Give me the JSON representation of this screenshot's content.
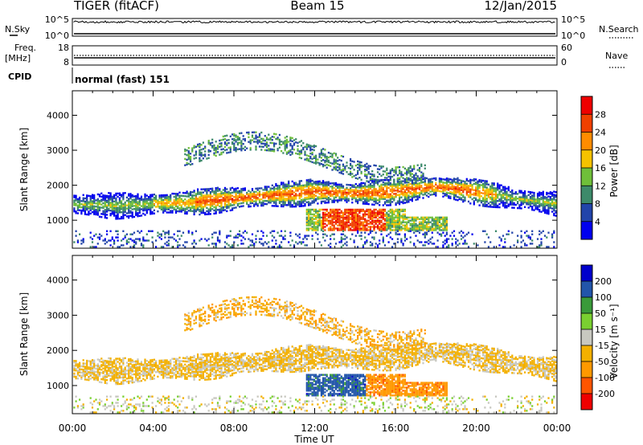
{
  "header": {
    "station": "TIGER (fitACF)",
    "beam": "Beam 15",
    "date": "12/Jan/2015"
  },
  "strips": {
    "nsky_label": "N.Sky",
    "nsky_ticks": [
      "10^5",
      "10^0"
    ],
    "nsearch_label": "N.Search",
    "nsearch_ticks": [
      "10^5",
      "10^0"
    ],
    "freq_label": "Freq.",
    "freq_unit": "[MHz]",
    "freq_ticks": [
      "18",
      "8"
    ],
    "nave_label": "Nave",
    "nave_ticks": [
      "60",
      "0"
    ],
    "cpid_label": "CPID",
    "cpid_value": "normal (fast) 151"
  },
  "colors": {
    "power_scale": [
      "#0000ee",
      "#2244aa",
      "#3d8a6a",
      "#6fbf3a",
      "#f5c200",
      "#ff8c00",
      "#f04000",
      "#ee0000"
    ],
    "velocity_scale": [
      "#ee0000",
      "#ff5500",
      "#ff9900",
      "#f3b000",
      "#c8c8c0",
      "#7ad030",
      "#3a9a3a",
      "#2255aa",
      "#0000cc"
    ]
  },
  "chart_data": [
    {
      "type": "heatmap",
      "name": "power-panel",
      "xlabel": "",
      "ylabel": "Slant Range [km]",
      "x_ticks": [
        "00:00",
        "04:00",
        "08:00",
        "12:00",
        "16:00",
        "20:00",
        "00:00"
      ],
      "y_ticks": [
        1000,
        2000,
        3000,
        4000
      ],
      "ylim": [
        200,
        4700
      ],
      "xlim_hours": [
        0,
        24
      ],
      "colorbar_label": "Power [dB]",
      "colorbar_ticks": [
        4,
        8,
        12,
        16,
        20,
        24,
        28
      ],
      "colorbar_range": [
        0,
        32
      ],
      "main_layer_center_km": [
        [
          0,
          1450
        ],
        [
          2,
          1400
        ],
        [
          4,
          1450
        ],
        [
          6,
          1500
        ],
        [
          8,
          1600
        ],
        [
          10,
          1700
        ],
        [
          12,
          1800
        ],
        [
          14,
          1750
        ],
        [
          16,
          1800
        ],
        [
          18,
          1950
        ],
        [
          20,
          1800
        ],
        [
          22,
          1600
        ],
        [
          24,
          1450
        ]
      ],
      "features": [
        {
          "region": "main layer",
          "hours": [
            0,
            24
          ],
          "range_km": [
            1100,
            2200
          ],
          "peak_db": 22
        },
        {
          "region": "lower echoes",
          "hours": [
            11.5,
            18.5
          ],
          "range_km": [
            700,
            1300
          ],
          "peak_db": 30
        },
        {
          "region": "upper echoes",
          "hours": [
            5.5,
            17.5
          ],
          "range_km": [
            2400,
            3500
          ],
          "peak_db": 14
        },
        {
          "region": "near range",
          "hours": [
            0,
            24
          ],
          "range_km": [
            200,
            700
          ],
          "peak_db": 6
        }
      ]
    },
    {
      "type": "heatmap",
      "name": "velocity-panel",
      "xlabel": "Time UT",
      "ylabel": "Slant Range [km]",
      "x_ticks": [
        "00:00",
        "04:00",
        "08:00",
        "12:00",
        "16:00",
        "20:00",
        "00:00"
      ],
      "y_ticks": [
        1000,
        2000,
        3000,
        4000
      ],
      "ylim": [
        200,
        4700
      ],
      "xlim_hours": [
        0,
        24
      ],
      "colorbar_label": "Velocity [m s⁻¹]",
      "colorbar_ticks": [
        200,
        100,
        50,
        15,
        -15,
        -50,
        -100,
        -200
      ],
      "colorbar_range": [
        -250,
        250
      ],
      "features": [
        {
          "region": "main layer",
          "hours": [
            0,
            24
          ],
          "range_km": [
            1100,
            2200
          ],
          "velocity_ms": -20
        },
        {
          "region": "lower echoes west",
          "hours": [
            11.5,
            14.5
          ],
          "range_km": [
            700,
            1100
          ],
          "velocity_ms": 120
        },
        {
          "region": "lower echoes east",
          "hours": [
            14.5,
            18.5
          ],
          "range_km": [
            700,
            1200
          ],
          "velocity_ms": -80
        },
        {
          "region": "upper echoes",
          "hours": [
            5.5,
            17.5
          ],
          "range_km": [
            2400,
            3500
          ],
          "velocity_ms": -40
        }
      ]
    }
  ]
}
